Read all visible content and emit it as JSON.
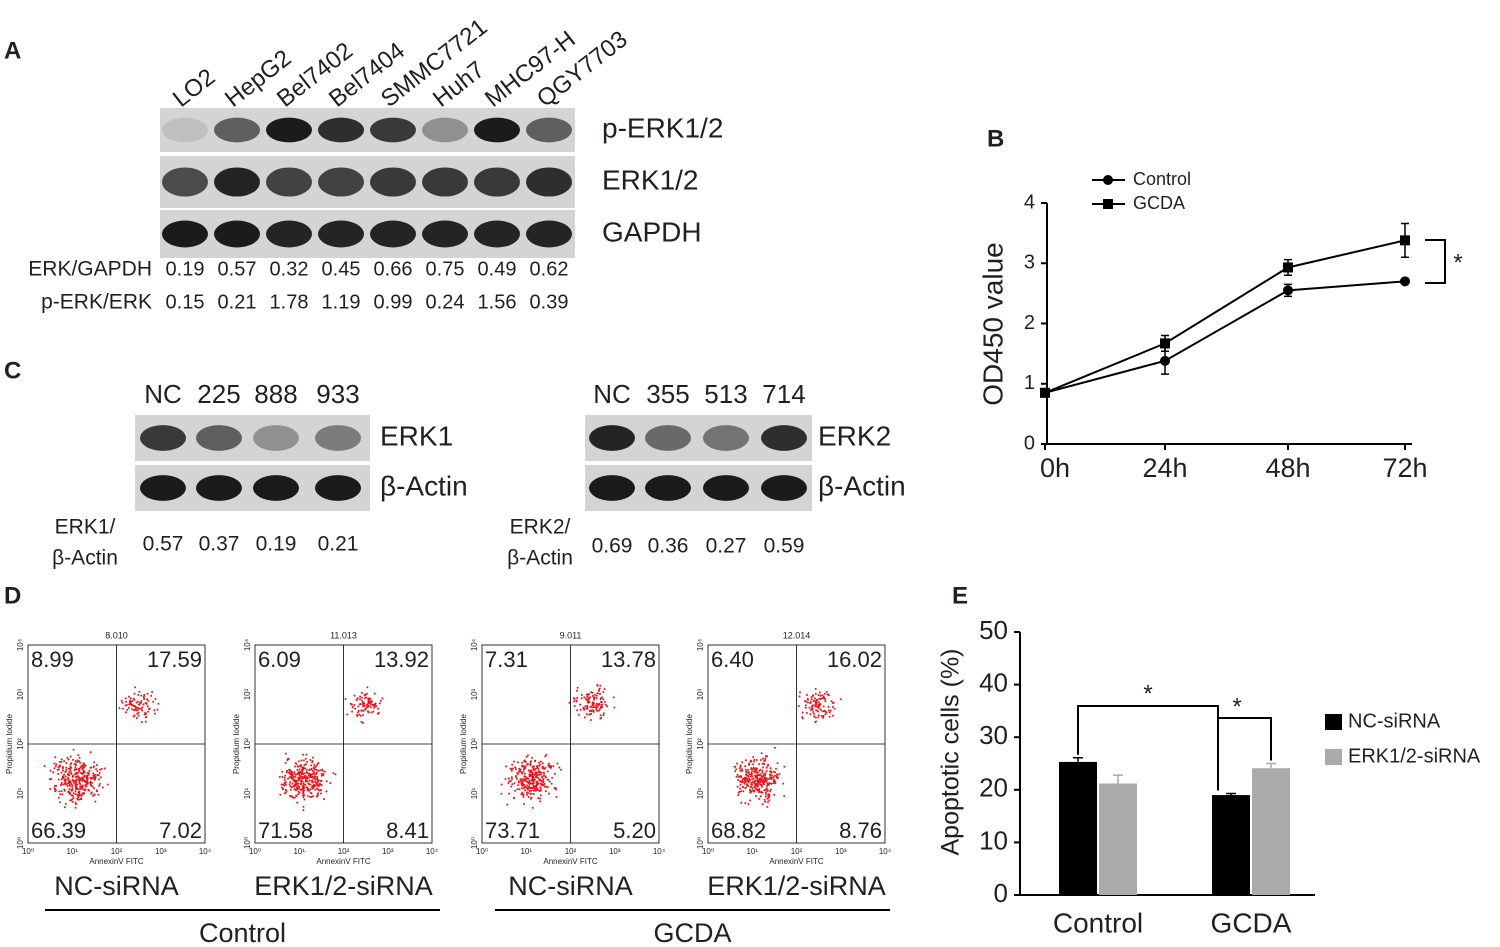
{
  "panel_a": {
    "letter": "A",
    "lanes": [
      "LO2",
      "HepG2",
      "Bel7402",
      "Bel7404",
      "SMMC7721",
      "Huh7",
      "MHC97-H",
      "QGY7703"
    ],
    "bands": [
      "p-ERK1/2",
      "ERK1/2",
      "GAPDH"
    ],
    "rows": [
      {
        "label": "ERK/GAPDH",
        "values": [
          0.19,
          0.57,
          0.32,
          0.45,
          0.66,
          0.75,
          0.49,
          0.62
        ]
      },
      {
        "label": "p-ERK/ERK",
        "values": [
          0.15,
          0.21,
          1.78,
          1.19,
          0.99,
          0.24,
          1.56,
          0.39
        ]
      }
    ]
  },
  "panel_c": {
    "letter": "C",
    "blots": [
      {
        "lanes": [
          "NC",
          "225",
          "888",
          "933"
        ],
        "bands": [
          "ERK1",
          "β-Actin"
        ],
        "ratio_label": [
          "ERK1/",
          "β-Actin"
        ],
        "values": [
          0.57,
          0.37,
          0.19,
          0.21
        ]
      },
      {
        "lanes": [
          "NC",
          "355",
          "513",
          "714"
        ],
        "bands": [
          "ERK2",
          "β-Actin"
        ],
        "ratio_label": [
          "ERK2/",
          "β-Actin"
        ],
        "values": [
          0.69,
          0.36,
          0.27,
          0.59
        ]
      }
    ]
  },
  "panel_d": {
    "letter": "D",
    "x_axis_label": "AnnexinV FITC",
    "y_axis_label": "Propidium Iodide",
    "ticks": [
      "10⁰",
      "10¹",
      "10²",
      "10³",
      "10⁴"
    ],
    "plots": [
      {
        "title": "8.010",
        "quadrants": [
          "8.99",
          "17.59",
          "66.39",
          "7.02"
        ],
        "name": "NC-siRNA"
      },
      {
        "title": "11.013",
        "quadrants": [
          "6.09",
          "13.92",
          "71.58",
          "8.41"
        ],
        "name": "ERK1/2-siRNA"
      },
      {
        "title": "9.011",
        "quadrants": [
          "7.31",
          "13.78",
          "73.71",
          "5.20"
        ],
        "name": "NC-siRNA"
      },
      {
        "title": "12.014",
        "quadrants": [
          "6.40",
          "16.02",
          "68.82",
          "8.76"
        ],
        "name": "ERK1/2-siRNA"
      }
    ],
    "groups": [
      "Control",
      "GCDA"
    ]
  },
  "chart_data": [
    {
      "type": "line",
      "panel_label": "B",
      "y_label": "OD450 value",
      "categories": [
        "0h",
        "24h",
        "48h",
        "72h"
      ],
      "series": [
        {
          "name": "Control",
          "color": "#000000",
          "marker": "circle",
          "values": [
            0.85,
            1.38,
            2.55,
            2.7
          ],
          "errors": [
            0.05,
            0.22,
            0.1,
            0.03
          ]
        },
        {
          "name": "GCDA",
          "color": "#000000",
          "marker": "square",
          "values": [
            0.85,
            1.67,
            2.93,
            3.38
          ],
          "errors": [
            0.05,
            0.13,
            0.13,
            0.28
          ]
        }
      ],
      "ylim": [
        0,
        4
      ],
      "yticks": [
        0,
        1,
        2,
        3,
        4
      ],
      "annotation": "*"
    },
    {
      "type": "bar",
      "panel_label": "E",
      "y_label": "Apoptotic cells (%)",
      "categories": [
        "Control",
        "GCDA"
      ],
      "series": [
        {
          "name": "NC-siRNA",
          "color": "#000000",
          "values": [
            25.3,
            19
          ],
          "errors": [
            0.8,
            0.3
          ]
        },
        {
          "name": "ERK1/2-siRNA",
          "color": "#aaaaaa",
          "values": [
            21.2,
            24.1
          ],
          "errors": [
            1.6,
            0.9
          ]
        }
      ],
      "ylim": [
        0,
        50
      ],
      "yticks": [
        0,
        10,
        20,
        30,
        40,
        50
      ],
      "annotations": [
        "*",
        "*"
      ]
    }
  ]
}
